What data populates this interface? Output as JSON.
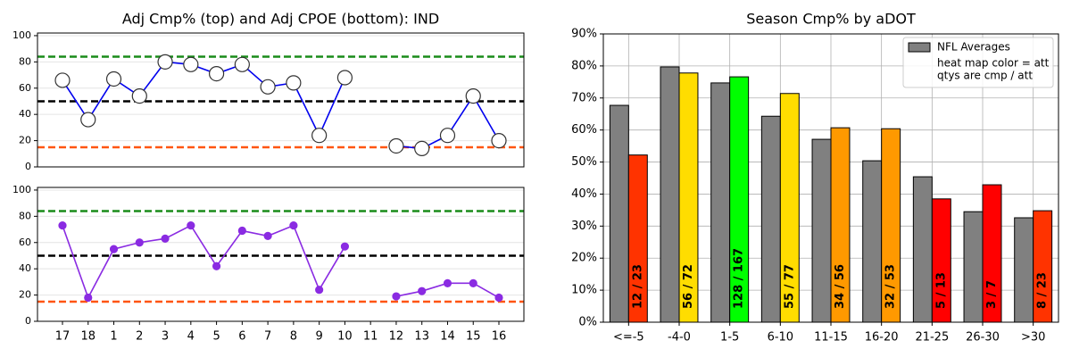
{
  "chart_data": [
    {
      "type": "line",
      "title": "Adj Cmp% (top) and Adj CPOE (bottom): IND",
      "ylim": [
        0,
        102
      ],
      "yticks": [
        0,
        20,
        40,
        60,
        80,
        100
      ],
      "grid": true,
      "hlines": [
        {
          "value": 84,
          "color": "#1a8c1a"
        },
        {
          "value": 50,
          "color": "#000000"
        },
        {
          "value": 15,
          "color": "#ff5511"
        }
      ],
      "series": [
        {
          "color": "#0000ee",
          "marker_fill": "#ffffff",
          "marker_stroke": "#333333",
          "values": [
            66,
            36,
            67,
            54,
            80,
            78,
            71,
            78,
            61,
            64,
            24,
            68,
            null,
            16,
            14,
            24,
            54,
            20
          ]
        }
      ]
    },
    {
      "type": "line",
      "categories": [
        "17",
        "18",
        "1",
        "2",
        "3",
        "4",
        "5",
        "6",
        "7",
        "8",
        "9",
        "10",
        "11",
        "12",
        "13",
        "14",
        "15",
        "16"
      ],
      "ylim": [
        0,
        102
      ],
      "yticks": [
        0,
        20,
        40,
        60,
        80,
        100
      ],
      "grid": true,
      "hlines": [
        {
          "value": 84,
          "color": "#1a8c1a"
        },
        {
          "value": 50,
          "color": "#000000"
        },
        {
          "value": 15,
          "color": "#ff5511"
        }
      ],
      "series": [
        {
          "color": "#8a2be2",
          "marker_fill": "#8a2be2",
          "marker_stroke": "#8a2be2",
          "values": [
            73,
            18,
            55,
            60,
            63,
            73,
            42,
            69,
            65,
            73,
            24,
            57,
            null,
            19,
            23,
            29,
            29,
            18
          ]
        }
      ]
    },
    {
      "type": "bar",
      "title": "Season Cmp% by aDOT",
      "categories": [
        "<=-5",
        "-4-0",
        "1-5",
        "6-10",
        "11-15",
        "16-20",
        "21-25",
        "26-30",
        ">30"
      ],
      "ylim": [
        0,
        90
      ],
      "yticks": [
        {
          "value": 0,
          "label": "0%"
        },
        {
          "value": 10,
          "label": "10%"
        },
        {
          "value": 20,
          "label": "20%"
        },
        {
          "value": 30,
          "label": "30%"
        },
        {
          "value": 40,
          "label": "40%"
        },
        {
          "value": 50,
          "label": "50%"
        },
        {
          "value": 60,
          "label": "60%"
        },
        {
          "value": 70,
          "label": "70%"
        },
        {
          "value": 80,
          "label": "80%"
        },
        {
          "value": 90,
          "label": "90%"
        }
      ],
      "grid": true,
      "legend": "upper right",
      "legend_note": [
        "heat map color = att",
        "qtys are cmp / att"
      ],
      "series": [
        {
          "name": "NFL Averages",
          "color": "#808080",
          "values": [
            67.7,
            79.7,
            74.7,
            64.3,
            57.1,
            50.4,
            45.4,
            34.5,
            32.6
          ]
        },
        {
          "colors": [
            "#ff3300",
            "#ffdd00",
            "#00ff00",
            "#ffdd00",
            "#ff9900",
            "#ff9900",
            "#ff0000",
            "#ff0000",
            "#ff3300"
          ],
          "values": [
            52.2,
            77.8,
            76.6,
            71.4,
            60.7,
            60.4,
            38.5,
            42.9,
            34.8
          ],
          "value_labels": [
            "12 / 23",
            "56 / 72",
            "128 / 167",
            "55 / 77",
            "34 / 56",
            "32 / 53",
            "5 / 13",
            "3 / 7",
            "8 / 23"
          ]
        }
      ]
    }
  ]
}
